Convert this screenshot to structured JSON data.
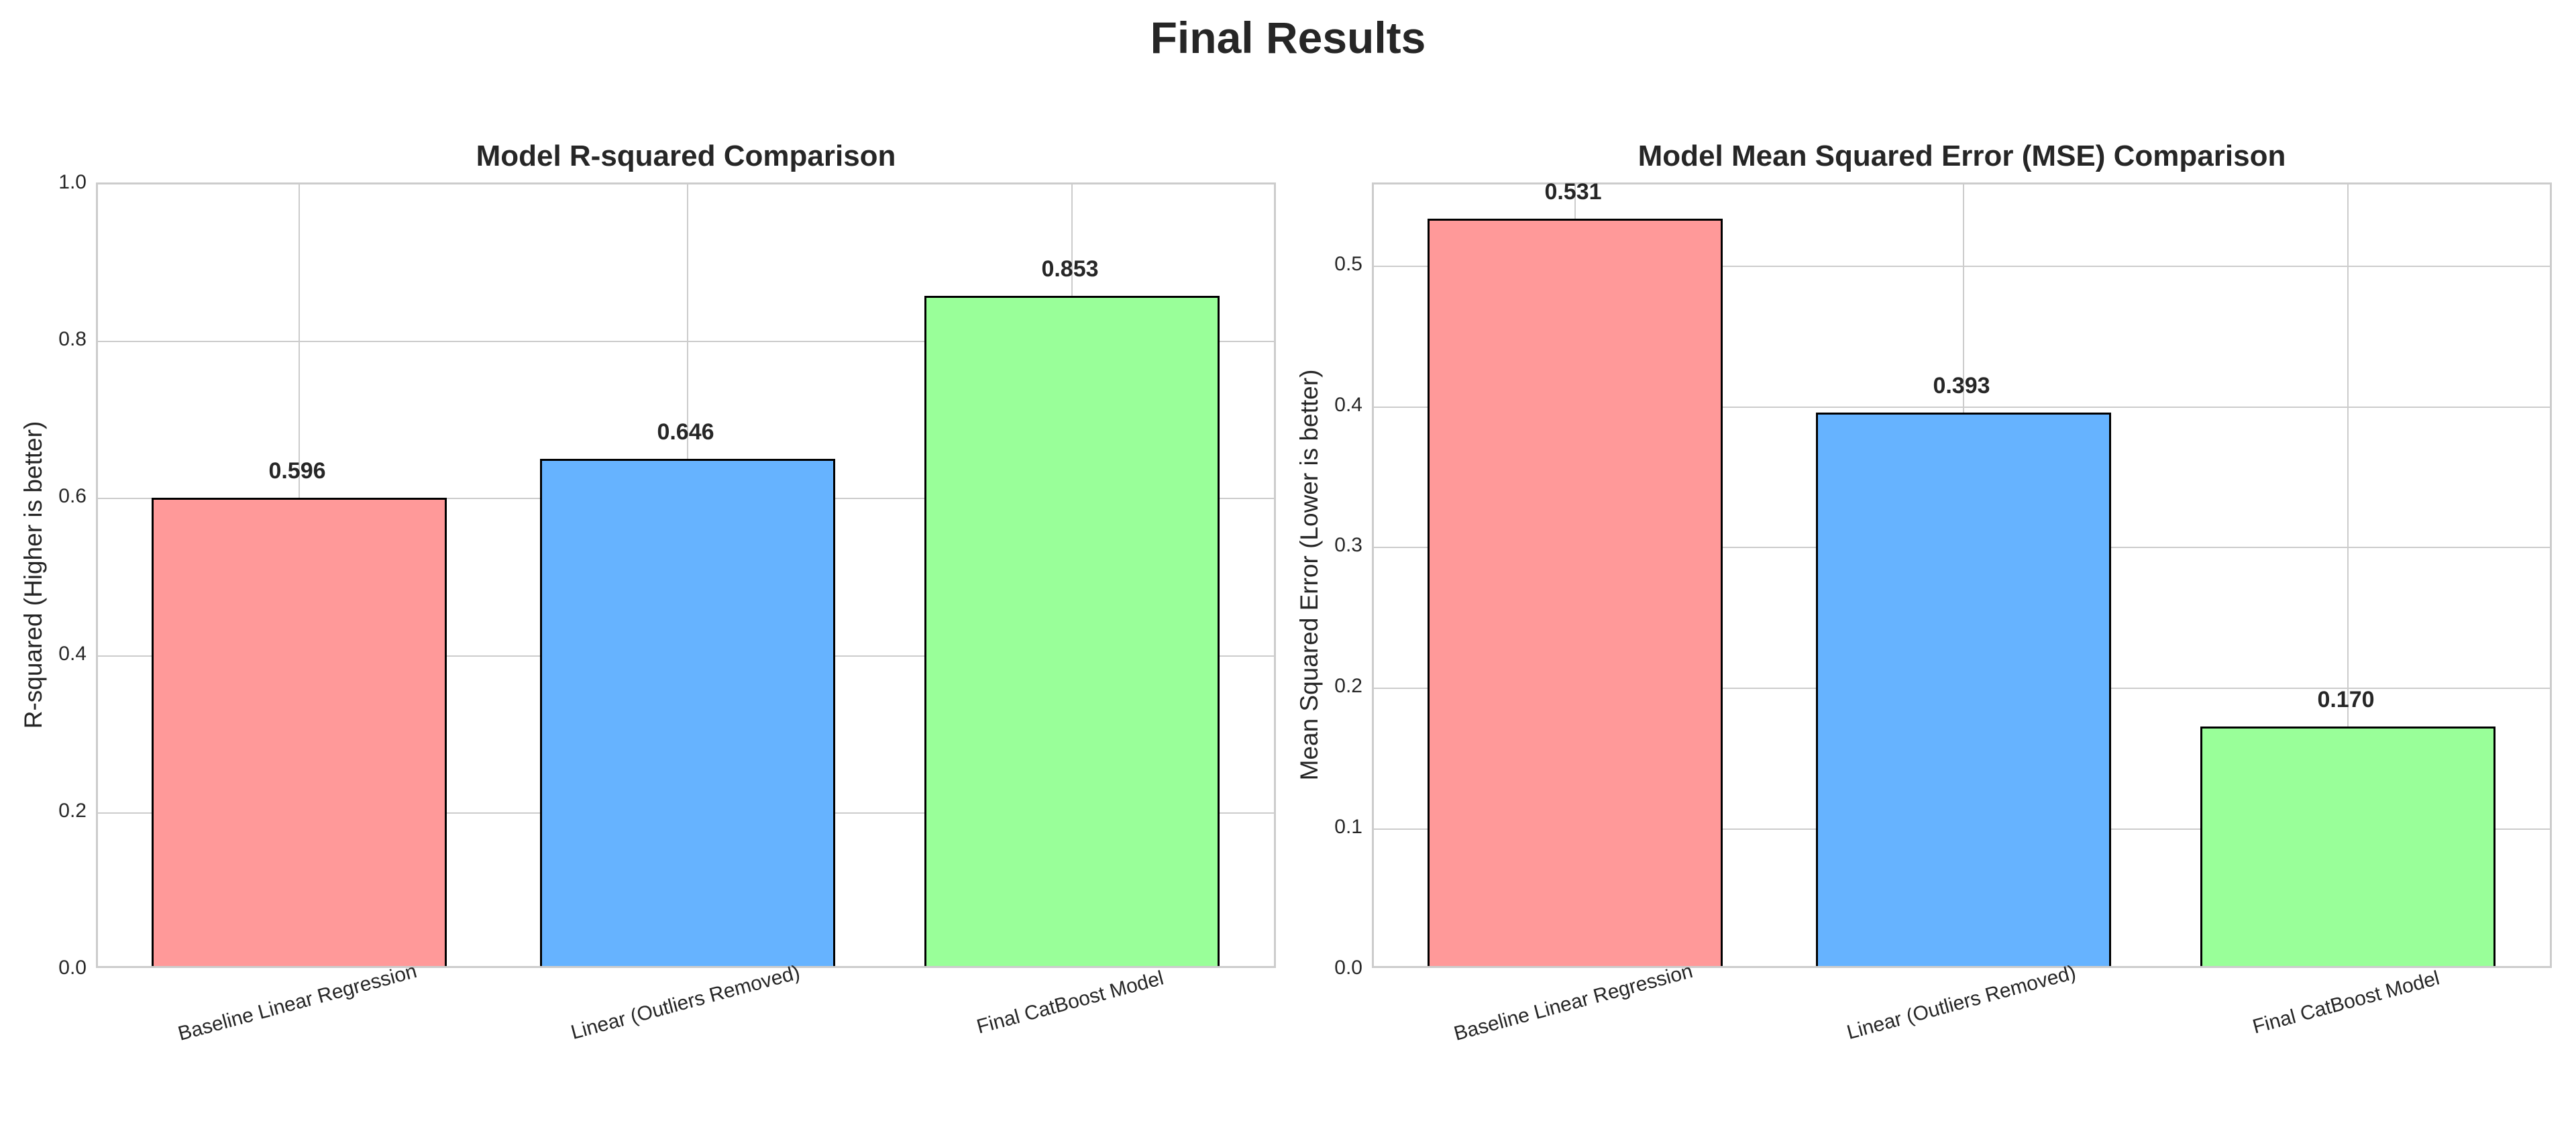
{
  "figure": {
    "suptitle": "Final Results",
    "colors": {
      "bar_1": "#ff9999",
      "bar_2": "#66b3ff",
      "bar_3": "#99ff99",
      "grid": "#cccccc",
      "edge": "#000000",
      "text": "#262626"
    }
  },
  "chart_data": [
    {
      "type": "bar",
      "title": "Model R-squared Comparison",
      "xlabel": "",
      "ylabel": "R-squared (Higher is better)",
      "categories": [
        "Baseline Linear Regression",
        "Linear (Outliers Removed)",
        "Final CatBoost Model"
      ],
      "values": [
        0.596,
        0.646,
        0.853
      ],
      "value_labels": [
        "0.596",
        "0.646",
        "0.853"
      ],
      "colors": [
        "#ff9999",
        "#66b3ff",
        "#99ff99"
      ],
      "ylim": [
        0,
        1.0
      ],
      "yticks": [
        "0.0",
        "0.2",
        "0.4",
        "0.6",
        "0.8",
        "1.0"
      ],
      "grid": true,
      "legend": null
    },
    {
      "type": "bar",
      "title": "Model Mean Squared Error (MSE) Comparison",
      "xlabel": "",
      "ylabel": "Mean Squared Error (Lower is better)",
      "categories": [
        "Baseline Linear Regression",
        "Linear (Outliers Removed)",
        "Final CatBoost Model"
      ],
      "values": [
        0.531,
        0.393,
        0.17
      ],
      "value_labels": [
        "0.531",
        "0.393",
        "0.170"
      ],
      "colors": [
        "#ff9999",
        "#66b3ff",
        "#99ff99"
      ],
      "ylim": [
        0,
        0.558
      ],
      "yticks": [
        "0.0",
        "0.1",
        "0.2",
        "0.3",
        "0.4",
        "0.5"
      ],
      "grid": true,
      "legend": null
    }
  ]
}
